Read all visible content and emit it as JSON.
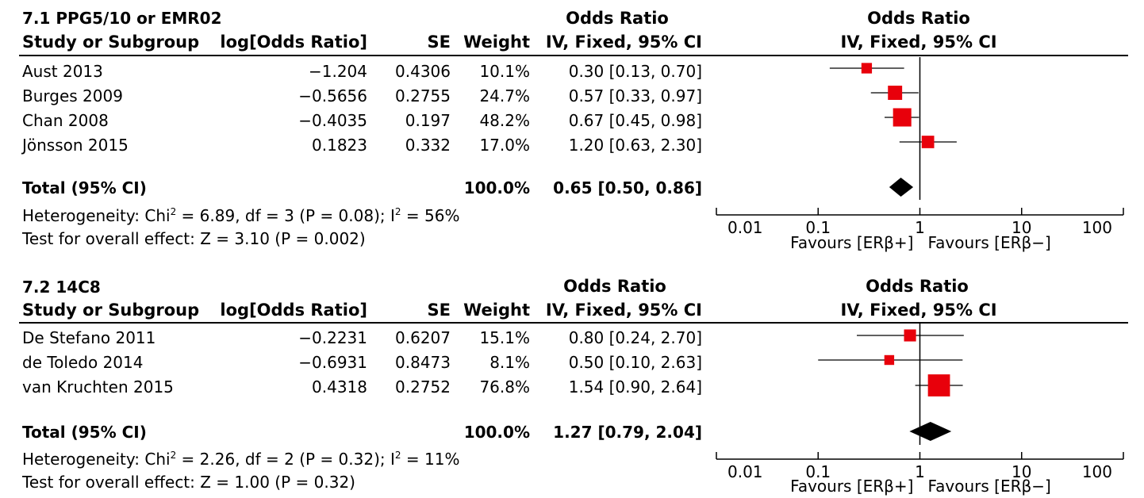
{
  "chart_data": [
    {
      "type": "forest",
      "group_title": "7.1 PPG5/10 or EMR02",
      "columns": {
        "study": "Study or Subgroup",
        "logor": "log[Odds Ratio]",
        "se": "SE",
        "weight": "Weight",
        "or_top": "Odds Ratio",
        "or_bottom": "IV, Fixed, 95% CI"
      },
      "plot_header_top": "Odds Ratio",
      "plot_header_bottom": "IV, Fixed, 95% CI",
      "studies": [
        {
          "name": "Aust 2013",
          "logor": "−1.204",
          "se": "0.4306",
          "weight": "10.1%",
          "ci_text": "0.30 [0.13, 0.70]",
          "or": 0.3,
          "lo": 0.13,
          "hi": 0.7,
          "w": 10.1
        },
        {
          "name": "Burges 2009",
          "logor": "−0.5656",
          "se": "0.2755",
          "weight": "24.7%",
          "ci_text": "0.57 [0.33, 0.97]",
          "or": 0.57,
          "lo": 0.33,
          "hi": 0.97,
          "w": 24.7
        },
        {
          "name": "Chan 2008",
          "logor": "−0.4035",
          "se": "0.197",
          "weight": "48.2%",
          "ci_text": "0.67 [0.45, 0.98]",
          "or": 0.67,
          "lo": 0.45,
          "hi": 0.98,
          "w": 48.2
        },
        {
          "name": "Jönsson 2015",
          "logor": "0.1823",
          "se": "0.332",
          "weight": "17.0%",
          "ci_text": "1.20 [0.63, 2.30]",
          "or": 1.2,
          "lo": 0.63,
          "hi": 2.3,
          "w": 17.0
        }
      ],
      "total": {
        "label": "Total (95% CI)",
        "weight": "100.0%",
        "ci_text": "0.65 [0.50, 0.86]",
        "or": 0.65,
        "lo": 0.5,
        "hi": 0.86
      },
      "heterogeneity": {
        "prefix": "Heterogeneity: Chi",
        "chi_sup": "2",
        "mid": " = 6.89, df = 3 (P = 0.08); I",
        "i_sup": "2",
        "suffix": " = 56%"
      },
      "overall_effect": "Test for overall effect: Z = 3.10 (P = 0.002)",
      "x_scale": "log",
      "x_ticks": [
        0.01,
        0.1,
        1,
        10,
        100
      ],
      "x_tick_labels": [
        "0.01",
        "0.1",
        "1",
        "10",
        "100"
      ],
      "xlim": [
        0.01,
        100
      ],
      "favours_left": "Favours [ERβ+]",
      "favours_right": "Favours [ERβ−]",
      "marker_color": "#e8000b"
    },
    {
      "type": "forest",
      "group_title": "7.2 14C8",
      "columns": {
        "study": "Study or Subgroup",
        "logor": "log[Odds Ratio]",
        "se": "SE",
        "weight": "Weight",
        "or_top": "Odds Ratio",
        "or_bottom": "IV, Fixed, 95% CI"
      },
      "plot_header_top": "Odds Ratio",
      "plot_header_bottom": "IV, Fixed, 95% CI",
      "studies": [
        {
          "name": "De Stefano 2011",
          "logor": "−0.2231",
          "se": "0.6207",
          "weight": "15.1%",
          "ci_text": "0.80 [0.24, 2.70]",
          "or": 0.8,
          "lo": 0.24,
          "hi": 2.7,
          "w": 15.1
        },
        {
          "name": "de Toledo 2014",
          "logor": "−0.6931",
          "se": "0.8473",
          "weight": "8.1%",
          "ci_text": "0.50 [0.10, 2.63]",
          "or": 0.5,
          "lo": 0.1,
          "hi": 2.63,
          "w": 8.1
        },
        {
          "name": "van Kruchten 2015",
          "logor": "0.4318",
          "se": "0.2752",
          "weight": "76.8%",
          "ci_text": "1.54 [0.90, 2.64]",
          "or": 1.54,
          "lo": 0.9,
          "hi": 2.64,
          "w": 76.8
        }
      ],
      "total": {
        "label": "Total (95% CI)",
        "weight": "100.0%",
        "ci_text": "1.27 [0.79, 2.04]",
        "or": 1.27,
        "lo": 0.79,
        "hi": 2.04
      },
      "heterogeneity": {
        "prefix": "Heterogeneity: Chi",
        "chi_sup": "2",
        "mid": " = 2.26, df = 2 (P = 0.32); I",
        "i_sup": "2",
        "suffix": " = 11%"
      },
      "overall_effect": "Test for overall effect: Z = 1.00 (P = 0.32)",
      "x_scale": "log",
      "x_ticks": [
        0.01,
        0.1,
        1,
        10,
        100
      ],
      "x_tick_labels": [
        "0.01",
        "0.1",
        "1",
        "10",
        "100"
      ],
      "xlim": [
        0.01,
        100
      ],
      "favours_left": "Favours [ERβ+]",
      "favours_right": "Favours [ERβ−]",
      "marker_color": "#e8000b"
    }
  ]
}
